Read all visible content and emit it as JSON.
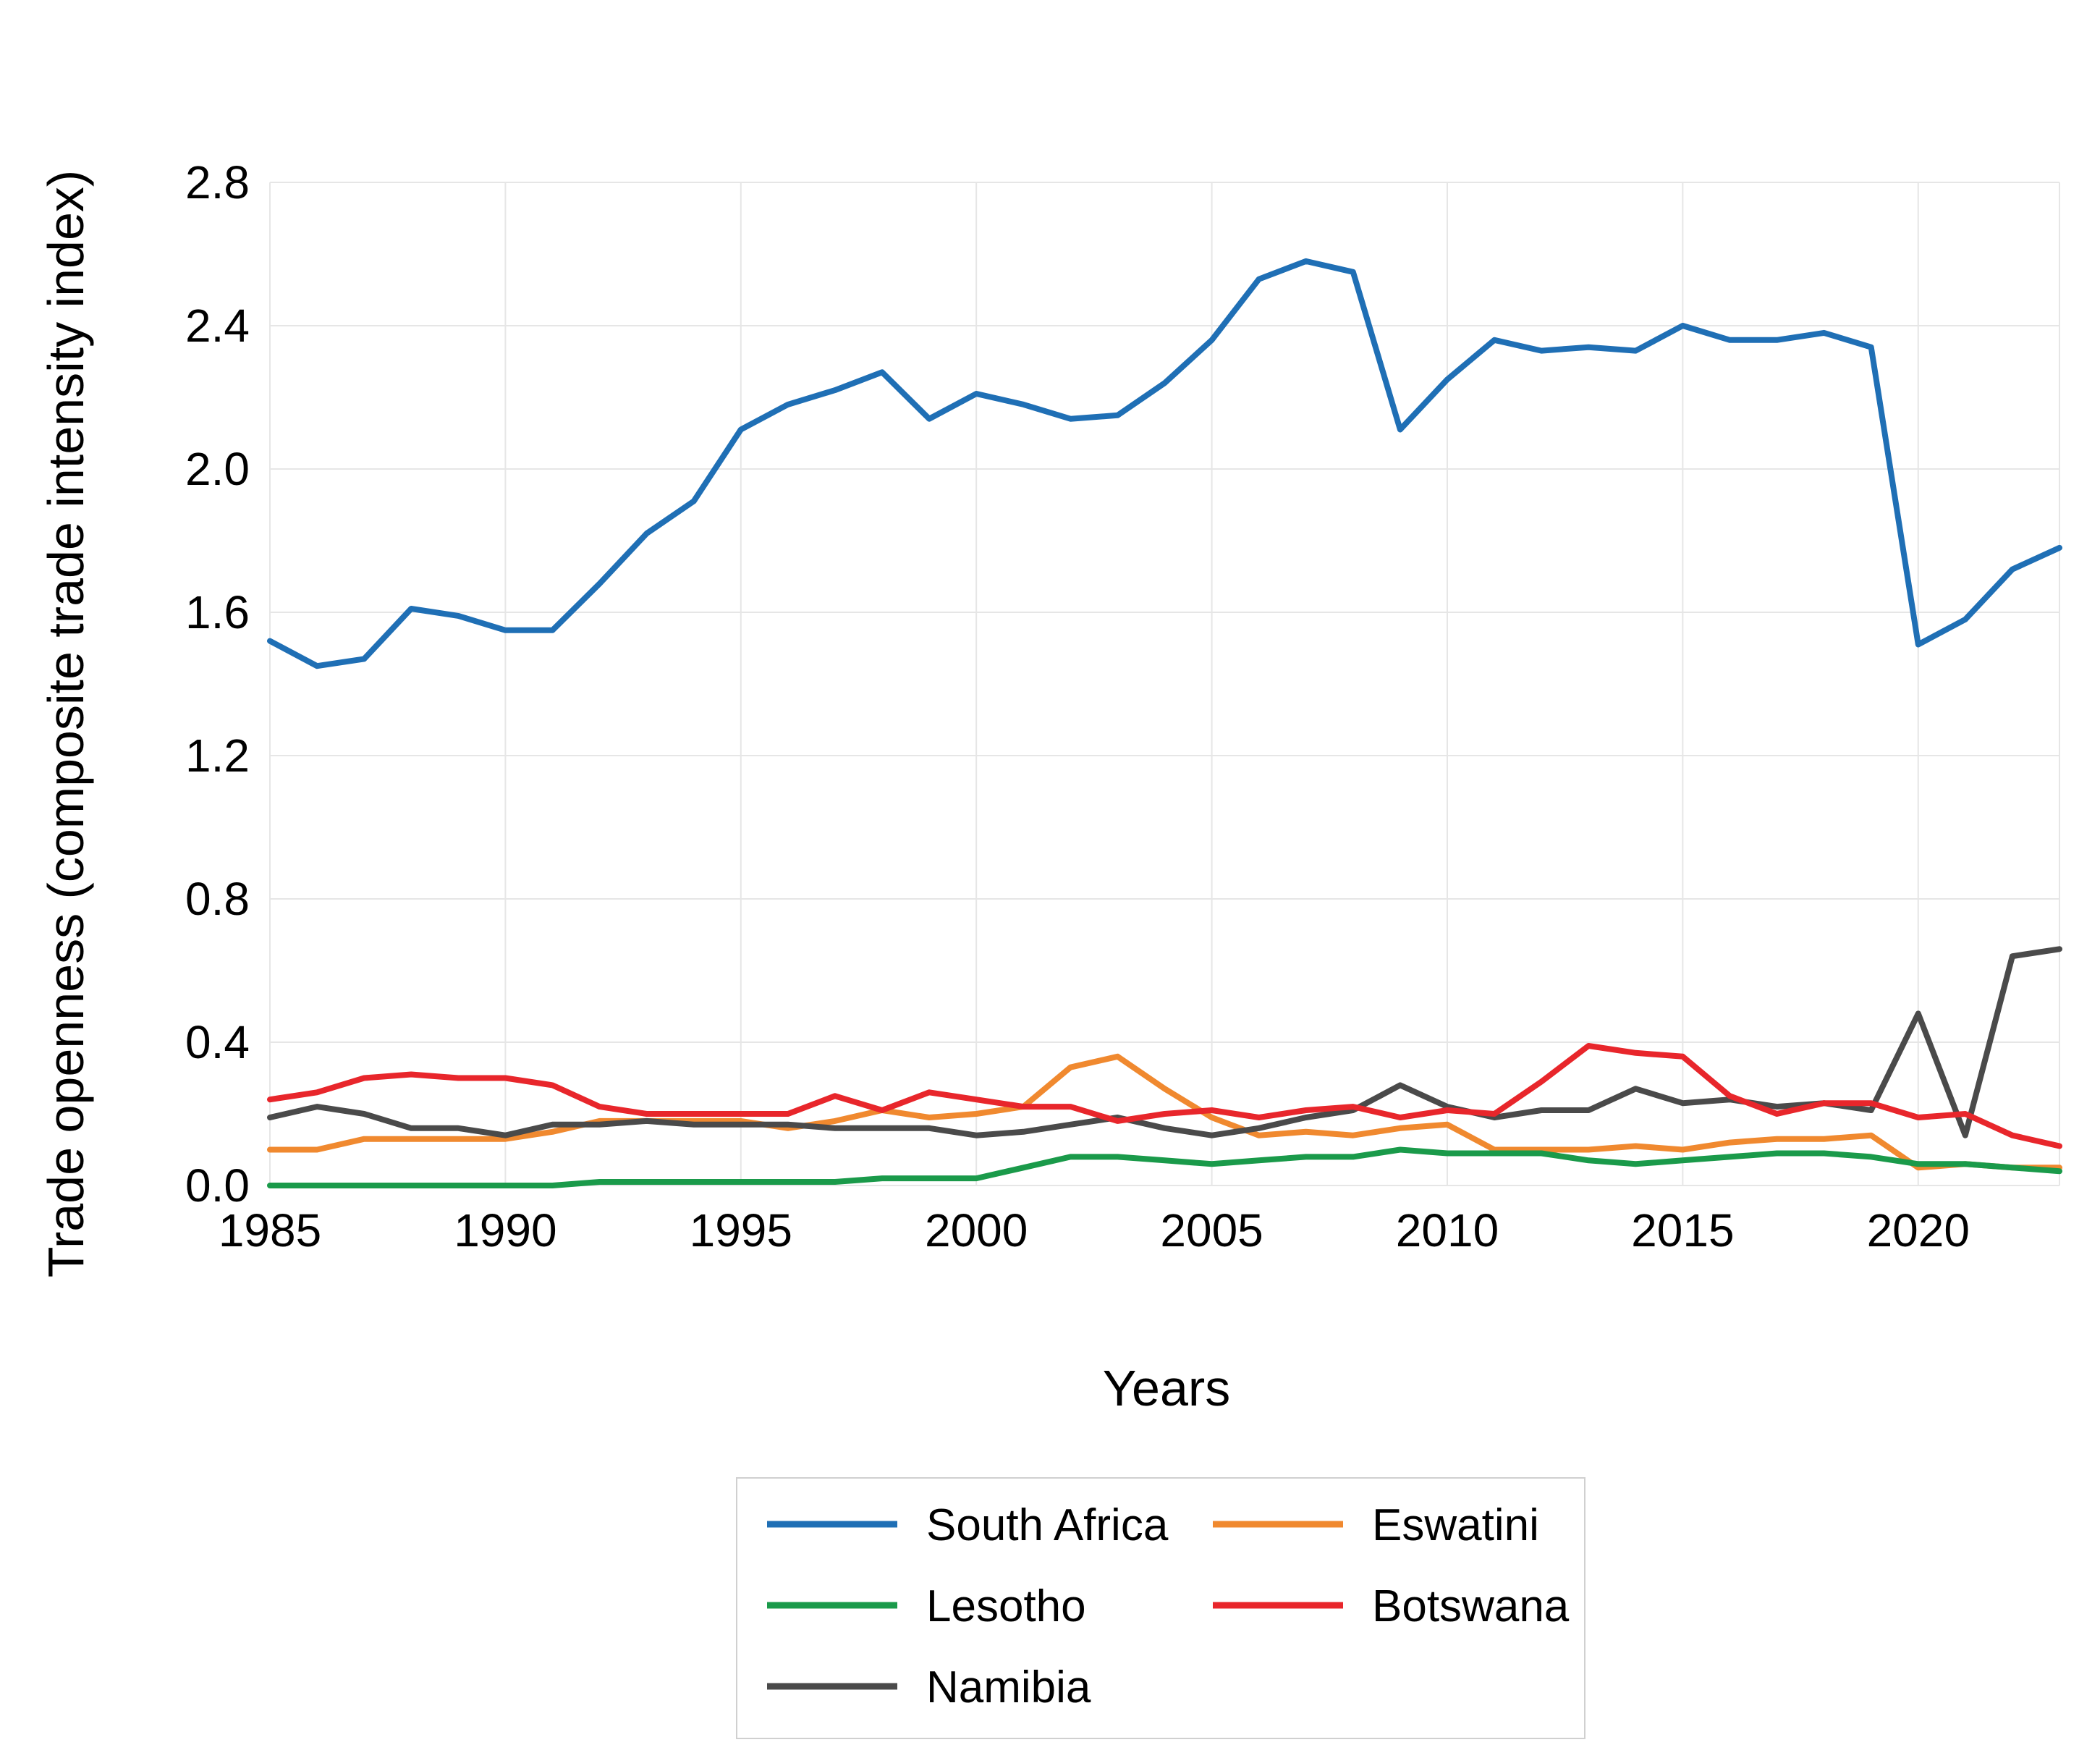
{
  "chart_data": {
    "type": "line",
    "title": "",
    "xlabel": "Years",
    "ylabel": "Trade openness (composite trade intensity index)",
    "xlim": [
      1985,
      2023
    ],
    "ylim": [
      0.0,
      2.8
    ],
    "x_ticks": [
      1985,
      1990,
      1995,
      2000,
      2005,
      2010,
      2015,
      2020
    ],
    "x_tick_labels": [
      "1985",
      "1990",
      "1995",
      "2000",
      "2005",
      "2010",
      "2015",
      "2020"
    ],
    "y_ticks": [
      0.0,
      0.4,
      0.8,
      1.2,
      1.6,
      2.0,
      2.4,
      2.8
    ],
    "y_tick_labels": [
      "0.0",
      "0.4",
      "0.8",
      "1.2",
      "1.6",
      "2.0",
      "2.4",
      "2.8"
    ],
    "grid": true,
    "legend_position": "bottom-center",
    "x": [
      1985,
      1986,
      1987,
      1988,
      1989,
      1990,
      1991,
      1992,
      1993,
      1994,
      1995,
      1996,
      1997,
      1998,
      1999,
      2000,
      2001,
      2002,
      2003,
      2004,
      2005,
      2006,
      2007,
      2008,
      2009,
      2010,
      2011,
      2012,
      2013,
      2014,
      2015,
      2016,
      2017,
      2018,
      2019,
      2020,
      2021,
      2022,
      2023
    ],
    "series": [
      {
        "name": "South Africa",
        "color": "#1f6fb5",
        "values": [
          1.52,
          1.45,
          1.47,
          1.61,
          1.59,
          1.55,
          1.55,
          1.68,
          1.82,
          1.91,
          2.11,
          2.18,
          2.22,
          2.27,
          2.14,
          2.21,
          2.18,
          2.14,
          2.15,
          2.24,
          2.36,
          2.53,
          2.58,
          2.55,
          2.11,
          2.25,
          2.36,
          2.33,
          2.34,
          2.33,
          2.4,
          2.36,
          2.36,
          2.38,
          2.34,
          1.51,
          1.58,
          1.72,
          1.78
        ]
      },
      {
        "name": "Eswatini",
        "color": "#f0892f",
        "values": [
          0.1,
          0.1,
          0.13,
          0.13,
          0.13,
          0.13,
          0.15,
          0.18,
          0.18,
          0.18,
          0.18,
          0.16,
          0.18,
          0.21,
          0.19,
          0.2,
          0.22,
          0.33,
          0.36,
          0.27,
          0.19,
          0.14,
          0.15,
          0.14,
          0.16,
          0.17,
          0.1,
          0.1,
          0.1,
          0.11,
          0.1,
          0.12,
          0.13,
          0.13,
          0.14,
          0.05,
          0.06,
          0.05,
          0.05
        ]
      },
      {
        "name": "Lesotho",
        "color": "#1a9a4a",
        "values": [
          0.0,
          0.0,
          0.0,
          0.0,
          0.0,
          0.0,
          0.0,
          0.01,
          0.01,
          0.01,
          0.01,
          0.01,
          0.01,
          0.02,
          0.02,
          0.02,
          0.05,
          0.08,
          0.08,
          0.07,
          0.06,
          0.07,
          0.08,
          0.08,
          0.1,
          0.09,
          0.09,
          0.09,
          0.07,
          0.06,
          0.07,
          0.08,
          0.09,
          0.09,
          0.08,
          0.06,
          0.06,
          0.05,
          0.04
        ]
      },
      {
        "name": "Botswana",
        "color": "#e8262b",
        "values": [
          0.24,
          0.26,
          0.3,
          0.31,
          0.3,
          0.3,
          0.28,
          0.22,
          0.2,
          0.2,
          0.2,
          0.2,
          0.25,
          0.21,
          0.26,
          0.24,
          0.22,
          0.22,
          0.18,
          0.2,
          0.21,
          0.19,
          0.21,
          0.22,
          0.19,
          0.21,
          0.2,
          0.29,
          0.39,
          0.37,
          0.36,
          0.25,
          0.2,
          0.23,
          0.23,
          0.19,
          0.2,
          0.14,
          0.11
        ]
      },
      {
        "name": "Namibia",
        "color": "#4a4a4a",
        "values": [
          0.19,
          0.22,
          0.2,
          0.16,
          0.16,
          0.14,
          0.17,
          0.17,
          0.18,
          0.17,
          0.17,
          0.17,
          0.16,
          0.16,
          0.16,
          0.14,
          0.15,
          0.17,
          0.19,
          0.16,
          0.14,
          0.16,
          0.19,
          0.21,
          0.28,
          0.22,
          0.19,
          0.21,
          0.21,
          0.27,
          0.23,
          0.24,
          0.22,
          0.23,
          0.21,
          0.48,
          0.14,
          0.64,
          0.66
        ]
      }
    ]
  }
}
